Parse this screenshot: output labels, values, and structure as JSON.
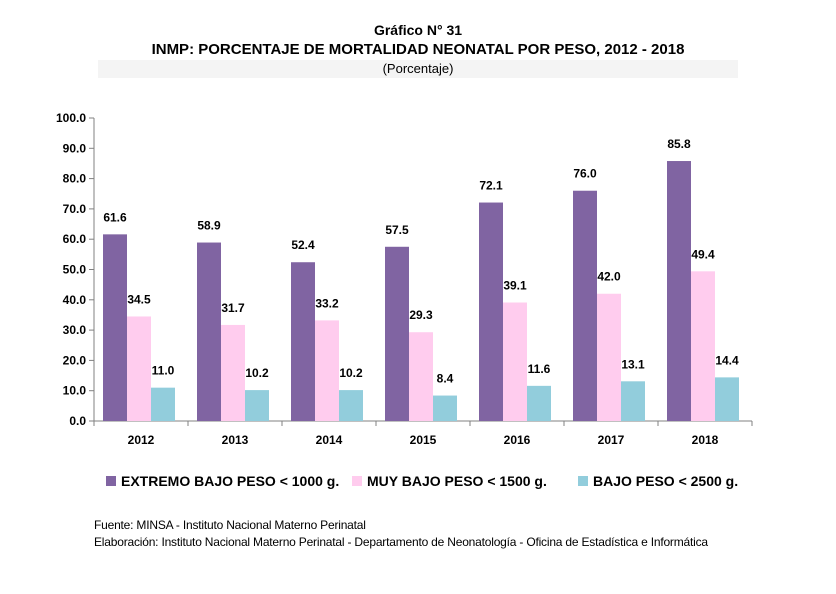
{
  "header": {
    "figure_number": "Gráfico N° 31",
    "title": "INMP: PORCENTAJE DE MORTALIDAD NEONATAL POR PESO, 2012 - 2018",
    "subtitle": "(Porcentaje)"
  },
  "chart_data": {
    "type": "bar",
    "categories": [
      "2012",
      "2013",
      "2014",
      "2015",
      "2016",
      "2017",
      "2018"
    ],
    "series": [
      {
        "name": "EXTREMO BAJO PESO < 1000 g.",
        "color": "#8064a2",
        "values": [
          61.6,
          58.9,
          52.4,
          57.5,
          72.1,
          76.0,
          85.8
        ],
        "labels": [
          "61.6",
          "58.9",
          "52.4",
          "57.5",
          "72.1",
          "76.0",
          "85.8"
        ]
      },
      {
        "name": "MUY BAJO PESO < 1500 g.",
        "color": "#ffccee",
        "values": [
          34.5,
          31.7,
          33.2,
          29.3,
          39.1,
          42.0,
          49.4
        ],
        "labels": [
          "34.5",
          "31.7",
          "33.2",
          "29.3",
          "39.1",
          "42.0",
          "49.4"
        ]
      },
      {
        "name": "BAJO PESO < 2500 g.",
        "color": "#92cddc",
        "values": [
          11.0,
          10.2,
          10.2,
          8.4,
          11.6,
          13.1,
          14.4
        ],
        "labels": [
          "11.0",
          "10.2",
          "10.2",
          "8.4",
          "11.6",
          "13.1",
          "14.4"
        ]
      }
    ],
    "y_ticks": [
      "0.0",
      "10.0",
      "20.0",
      "30.0",
      "40.0",
      "50.0",
      "60.0",
      "70.0",
      "80.0",
      "90.0",
      "100.0"
    ],
    "ylim": [
      0,
      100
    ],
    "grid": false,
    "legend_position": "bottom"
  },
  "footer": {
    "source": "Fuente: MINSA - Instituto Nacional Materno Perinatal",
    "elaboration": "Elaboración: Instituto Nacional Materno Perinatal - Departamento de Neonatología - Oficina de Estadística e Informática"
  }
}
